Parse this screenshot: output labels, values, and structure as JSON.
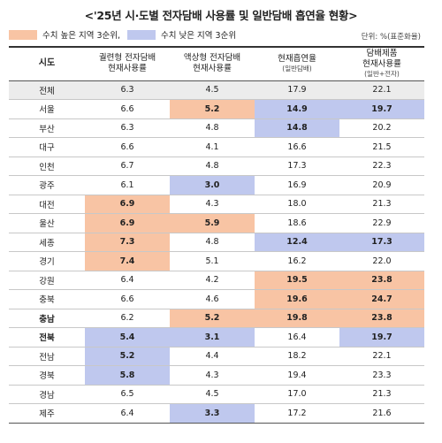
{
  "title": "<'25년 시·도별 전자담배 사용률 및 일반담배 흡연율 현황>",
  "legend": {
    "high_label": "수치 높은 지역 3순위,",
    "low_label": "수치 낮은 지역 3순위",
    "high_color": "#f8c4a4",
    "low_color": "#bfc8ee"
  },
  "unit": "단위: %(표준화율)",
  "headers": {
    "region": "시도",
    "col1": [
      "궐련형 전자담배",
      "현재사용률"
    ],
    "col2": [
      "액상형 전자담배",
      "현재사용률"
    ],
    "col3": [
      "현재흡연율",
      "(일반담배)"
    ],
    "col4": [
      "담배제품",
      "현재사용률",
      "(일반+전자)"
    ]
  },
  "rows": [
    {
      "region": "전체",
      "values": [
        "6.3",
        "4.5",
        "17.9",
        "22.1"
      ],
      "marks": [
        "",
        "",
        "",
        ""
      ]
    },
    {
      "region": "서울",
      "values": [
        "6.6",
        "5.2",
        "14.9",
        "19.7"
      ],
      "marks": [
        "",
        "high",
        "low",
        "low"
      ]
    },
    {
      "region": "부산",
      "values": [
        "6.3",
        "4.8",
        "14.8",
        "20.2"
      ],
      "marks": [
        "",
        "",
        "low",
        ""
      ]
    },
    {
      "region": "대구",
      "values": [
        "6.6",
        "4.1",
        "16.6",
        "21.5"
      ],
      "marks": [
        "",
        "",
        "",
        ""
      ]
    },
    {
      "region": "인천",
      "values": [
        "6.7",
        "4.8",
        "17.3",
        "22.3"
      ],
      "marks": [
        "",
        "",
        "",
        ""
      ]
    },
    {
      "region": "광주",
      "values": [
        "6.1",
        "3.0",
        "16.9",
        "20.9"
      ],
      "marks": [
        "",
        "low",
        "",
        ""
      ]
    },
    {
      "region": "대전",
      "values": [
        "6.9",
        "4.3",
        "18.0",
        "21.3"
      ],
      "marks": [
        "high",
        "",
        "",
        ""
      ]
    },
    {
      "region": "울산",
      "values": [
        "6.9",
        "5.9",
        "18.6",
        "22.9"
      ],
      "marks": [
        "high",
        "high",
        "",
        ""
      ]
    },
    {
      "region": "세종",
      "values": [
        "7.3",
        "4.8",
        "12.4",
        "17.3"
      ],
      "marks": [
        "high",
        "",
        "low",
        "low"
      ]
    },
    {
      "region": "경기",
      "values": [
        "7.4",
        "5.1",
        "16.2",
        "22.0"
      ],
      "marks": [
        "high",
        "",
        "",
        ""
      ]
    },
    {
      "region": "강원",
      "values": [
        "6.4",
        "4.2",
        "19.5",
        "23.8"
      ],
      "marks": [
        "",
        "",
        "high",
        "high"
      ]
    },
    {
      "region": "충북",
      "values": [
        "6.6",
        "4.6",
        "19.6",
        "24.7"
      ],
      "marks": [
        "",
        "",
        "high",
        "high"
      ]
    },
    {
      "region": "충남",
      "values": [
        "6.2",
        "5.2",
        "19.8",
        "23.8"
      ],
      "marks": [
        "",
        "high",
        "high",
        "high"
      ],
      "bold": true
    },
    {
      "region": "전북",
      "values": [
        "5.4",
        "3.1",
        "16.4",
        "19.7"
      ],
      "marks": [
        "low",
        "low",
        "",
        "low"
      ],
      "bold": true
    },
    {
      "region": "전남",
      "values": [
        "5.2",
        "4.4",
        "18.2",
        "22.1"
      ],
      "marks": [
        "low",
        "",
        "",
        ""
      ]
    },
    {
      "region": "경북",
      "values": [
        "5.8",
        "4.3",
        "19.4",
        "23.3"
      ],
      "marks": [
        "low",
        "",
        "",
        ""
      ]
    },
    {
      "region": "경남",
      "values": [
        "6.5",
        "4.5",
        "17.0",
        "21.3"
      ],
      "marks": [
        "",
        "",
        "",
        ""
      ]
    },
    {
      "region": "제주",
      "values": [
        "6.4",
        "3.3",
        "17.2",
        "21.6"
      ],
      "marks": [
        "",
        "low",
        "",
        ""
      ]
    }
  ]
}
